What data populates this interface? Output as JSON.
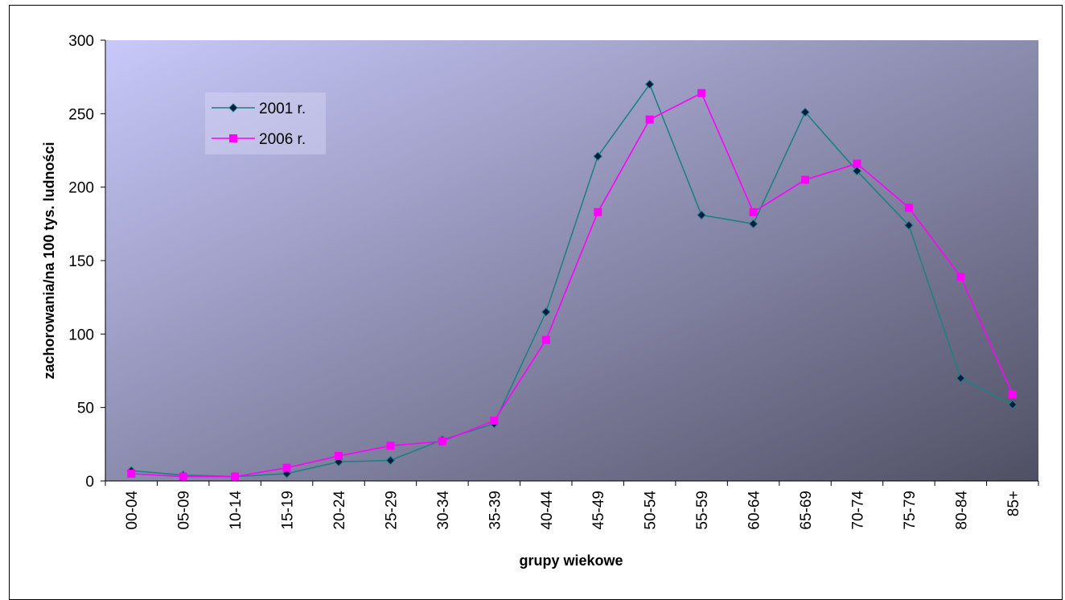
{
  "chart_data": {
    "type": "line",
    "xlabel": "grupy wiekowe",
    "ylabel": "zachorowania/na 100 tys. ludności",
    "ylim": [
      0,
      300
    ],
    "yticks": [
      0,
      50,
      100,
      150,
      200,
      250,
      300
    ],
    "grid": false,
    "legend_position": "top-left",
    "categories": [
      "00-04",
      "05-09",
      "10-14",
      "15-19",
      "20-24",
      "25-29",
      "30-34",
      "35-39",
      "40-44",
      "45-49",
      "50-54",
      "55-59",
      "60-64",
      "65-69",
      "70-74",
      "75-79",
      "80-84",
      "85+"
    ],
    "series": [
      {
        "name": "2001 r.",
        "color": "#1f8080",
        "marker": "diamond",
        "values": [
          7,
          4,
          3,
          5,
          13,
          14,
          28,
          39,
          115,
          221,
          270,
          181,
          175,
          251,
          211,
          174,
          70,
          52
        ]
      },
      {
        "name": "2006 r.",
        "color": "#ff00ff",
        "marker": "square",
        "values": [
          5,
          3,
          3,
          9,
          17,
          24,
          27,
          41,
          96,
          183,
          246,
          264,
          183,
          205,
          216,
          186,
          139,
          59
        ]
      }
    ],
    "plot_background": {
      "from": "#c8c8fa",
      "to": "#505064"
    }
  }
}
